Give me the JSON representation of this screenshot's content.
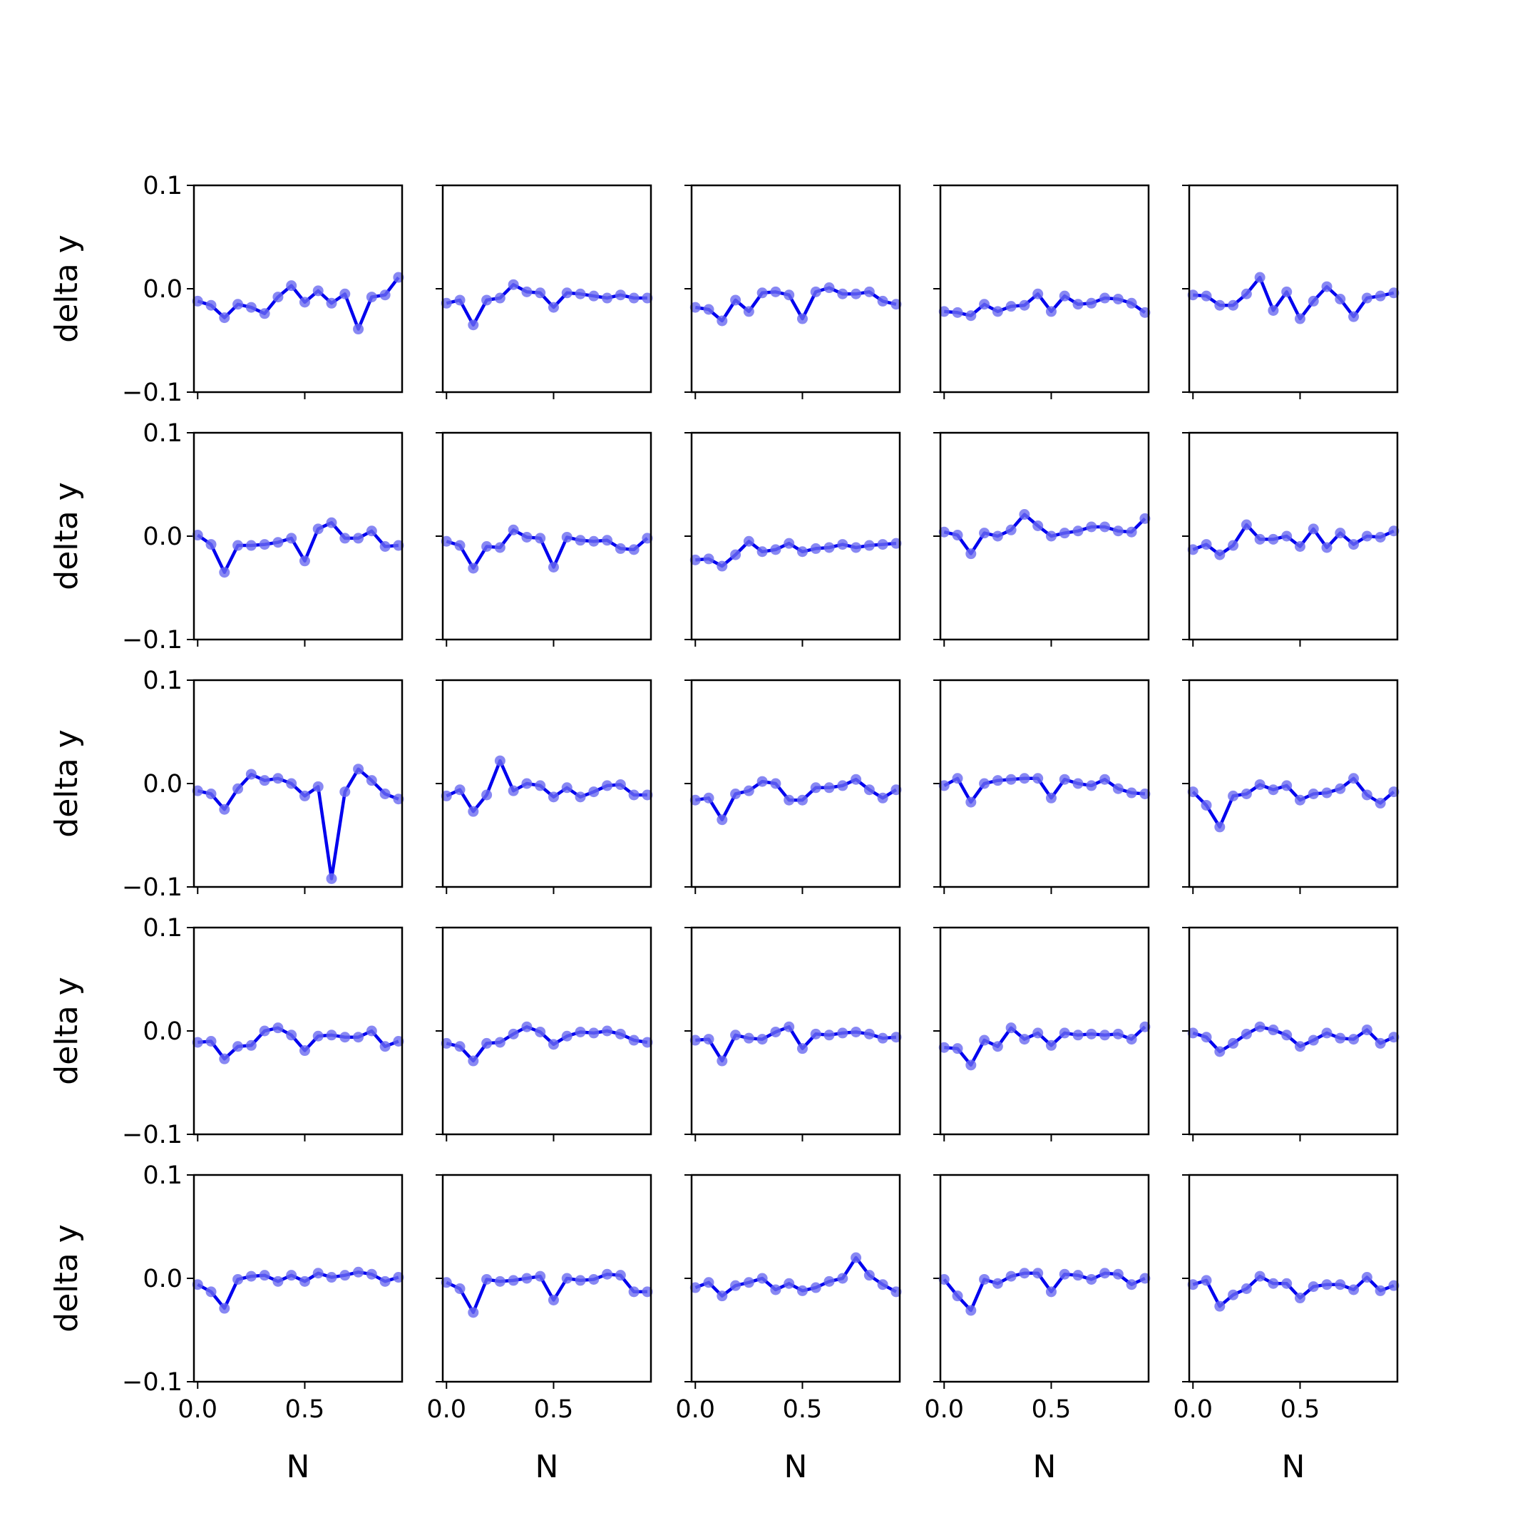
{
  "chart_data": {
    "type": "line",
    "layout": {
      "rows": 5,
      "cols": 5,
      "sharex": true,
      "sharey": true
    },
    "line_color": "#0000ee",
    "marker_color": "#6a6af0",
    "xlabel": "N",
    "ylabel": "delta y",
    "xlim": [
      -0.0175,
      0.9545
    ],
    "ylim": [
      -0.1,
      0.1
    ],
    "x_ticks": [
      0.0,
      0.5
    ],
    "x_tick_labels": [
      "0.0",
      "0.5"
    ],
    "y_ticks": [
      0.1,
      0.0,
      -0.1
    ],
    "y_tick_labels": [
      "0.1",
      "0.0",
      "−0.1"
    ],
    "x": [
      0.0,
      0.0625,
      0.125,
      0.1875,
      0.25,
      0.3125,
      0.375,
      0.4375,
      0.5,
      0.5625,
      0.625,
      0.6875,
      0.75,
      0.8125,
      0.875,
      0.9375
    ],
    "panels": [
      [
        -0.012,
        -0.016,
        -0.028,
        -0.015,
        -0.018,
        -0.024,
        -0.008,
        0.003,
        -0.013,
        -0.002,
        -0.014,
        -0.005,
        -0.039,
        -0.008,
        -0.006,
        0.011
      ],
      [
        -0.014,
        -0.011,
        -0.035,
        -0.011,
        -0.009,
        0.004,
        -0.003,
        -0.004,
        -0.018,
        -0.004,
        -0.005,
        -0.007,
        -0.009,
        -0.006,
        -0.009,
        -0.009
      ],
      [
        -0.018,
        -0.02,
        -0.031,
        -0.011,
        -0.022,
        -0.004,
        -0.003,
        -0.006,
        -0.029,
        -0.003,
        0.001,
        -0.005,
        -0.005,
        -0.003,
        -0.012,
        -0.015
      ],
      [
        -0.022,
        -0.023,
        -0.026,
        -0.015,
        -0.022,
        -0.017,
        -0.016,
        -0.005,
        -0.022,
        -0.007,
        -0.015,
        -0.014,
        -0.009,
        -0.01,
        -0.014,
        -0.023
      ],
      [
        -0.006,
        -0.007,
        -0.016,
        -0.016,
        -0.005,
        0.011,
        -0.021,
        -0.003,
        -0.029,
        -0.012,
        0.002,
        -0.01,
        -0.027,
        -0.009,
        -0.007,
        -0.004
      ],
      [
        0.001,
        -0.008,
        -0.035,
        -0.009,
        -0.009,
        -0.008,
        -0.006,
        -0.002,
        -0.024,
        0.007,
        0.013,
        -0.002,
        -0.002,
        0.005,
        -0.01,
        -0.009
      ],
      [
        -0.005,
        -0.009,
        -0.031,
        -0.01,
        -0.011,
        0.006,
        -0.001,
        -0.002,
        -0.03,
        -0.001,
        -0.004,
        -0.005,
        -0.004,
        -0.012,
        -0.013,
        -0.002
      ],
      [
        -0.023,
        -0.022,
        -0.029,
        -0.018,
        -0.005,
        -0.015,
        -0.013,
        -0.007,
        -0.015,
        -0.012,
        -0.011,
        -0.008,
        -0.011,
        -0.009,
        -0.008,
        -0.007
      ],
      [
        0.004,
        0.001,
        -0.017,
        0.003,
        0.0,
        0.006,
        0.021,
        0.01,
        0.0,
        0.003,
        0.005,
        0.009,
        0.009,
        0.005,
        0.004,
        0.017
      ],
      [
        -0.013,
        -0.008,
        -0.018,
        -0.009,
        0.011,
        -0.003,
        -0.003,
        0.0,
        -0.01,
        0.007,
        -0.011,
        0.003,
        -0.008,
        0.0,
        -0.001,
        0.005
      ],
      [
        -0.007,
        -0.01,
        -0.025,
        -0.005,
        0.009,
        0.003,
        0.005,
        0.0,
        -0.012,
        -0.003,
        -0.092,
        -0.008,
        0.014,
        0.003,
        -0.01,
        -0.015
      ],
      [
        -0.012,
        -0.006,
        -0.027,
        -0.011,
        0.022,
        -0.007,
        0.0,
        -0.002,
        -0.013,
        -0.004,
        -0.013,
        -0.008,
        -0.002,
        -0.001,
        -0.011,
        -0.011
      ],
      [
        -0.016,
        -0.014,
        -0.035,
        -0.01,
        -0.007,
        0.002,
        0.0,
        -0.016,
        -0.016,
        -0.004,
        -0.004,
        -0.002,
        0.004,
        -0.006,
        -0.014,
        -0.006
      ],
      [
        -0.002,
        0.005,
        -0.018,
        0.0,
        0.003,
        0.004,
        0.005,
        0.005,
        -0.014,
        0.004,
        0.0,
        -0.002,
        0.004,
        -0.005,
        -0.009,
        -0.01
      ],
      [
        -0.008,
        -0.021,
        -0.042,
        -0.012,
        -0.01,
        -0.001,
        -0.006,
        -0.002,
        -0.016,
        -0.01,
        -0.009,
        -0.005,
        0.005,
        -0.011,
        -0.019,
        -0.008
      ],
      [
        -0.011,
        -0.01,
        -0.027,
        -0.015,
        -0.014,
        0.0,
        0.003,
        -0.004,
        -0.019,
        -0.005,
        -0.004,
        -0.006,
        -0.006,
        0.0,
        -0.015,
        -0.01
      ],
      [
        -0.012,
        -0.015,
        -0.029,
        -0.012,
        -0.011,
        -0.003,
        0.004,
        -0.001,
        -0.013,
        -0.005,
        -0.001,
        -0.002,
        0.0,
        -0.003,
        -0.009,
        -0.011
      ],
      [
        -0.009,
        -0.008,
        -0.029,
        -0.004,
        -0.007,
        -0.008,
        -0.001,
        0.004,
        -0.017,
        -0.003,
        -0.004,
        -0.002,
        -0.001,
        -0.003,
        -0.007,
        -0.006
      ],
      [
        -0.016,
        -0.017,
        -0.033,
        -0.009,
        -0.015,
        0.003,
        -0.008,
        -0.002,
        -0.014,
        -0.002,
        -0.004,
        -0.003,
        -0.004,
        -0.003,
        -0.008,
        0.004
      ],
      [
        -0.002,
        -0.006,
        -0.02,
        -0.012,
        -0.003,
        0.004,
        0.001,
        -0.004,
        -0.015,
        -0.009,
        -0.002,
        -0.007,
        -0.008,
        0.001,
        -0.012,
        -0.006
      ],
      [
        -0.006,
        -0.013,
        -0.029,
        -0.001,
        0.002,
        0.003,
        -0.003,
        0.003,
        -0.003,
        0.005,
        0.001,
        0.003,
        0.006,
        0.004,
        -0.003,
        0.001
      ],
      [
        -0.004,
        -0.01,
        -0.033,
        -0.001,
        -0.003,
        -0.002,
        0.0,
        0.002,
        -0.021,
        0.0,
        -0.002,
        -0.001,
        0.004,
        0.003,
        -0.013,
        -0.013
      ],
      [
        -0.009,
        -0.004,
        -0.017,
        -0.007,
        -0.004,
        0.0,
        -0.011,
        -0.005,
        -0.012,
        -0.009,
        -0.003,
        0.0,
        0.02,
        0.003,
        -0.006,
        -0.013
      ],
      [
        -0.001,
        -0.017,
        -0.031,
        -0.001,
        -0.005,
        0.002,
        0.005,
        0.005,
        -0.013,
        0.004,
        0.003,
        -0.001,
        0.005,
        0.004,
        -0.006,
        0.0
      ],
      [
        -0.006,
        -0.002,
        -0.027,
        -0.016,
        -0.01,
        0.002,
        -0.005,
        -0.005,
        -0.019,
        -0.008,
        -0.006,
        -0.006,
        -0.011,
        0.001,
        -0.012,
        -0.007
      ]
    ]
  }
}
